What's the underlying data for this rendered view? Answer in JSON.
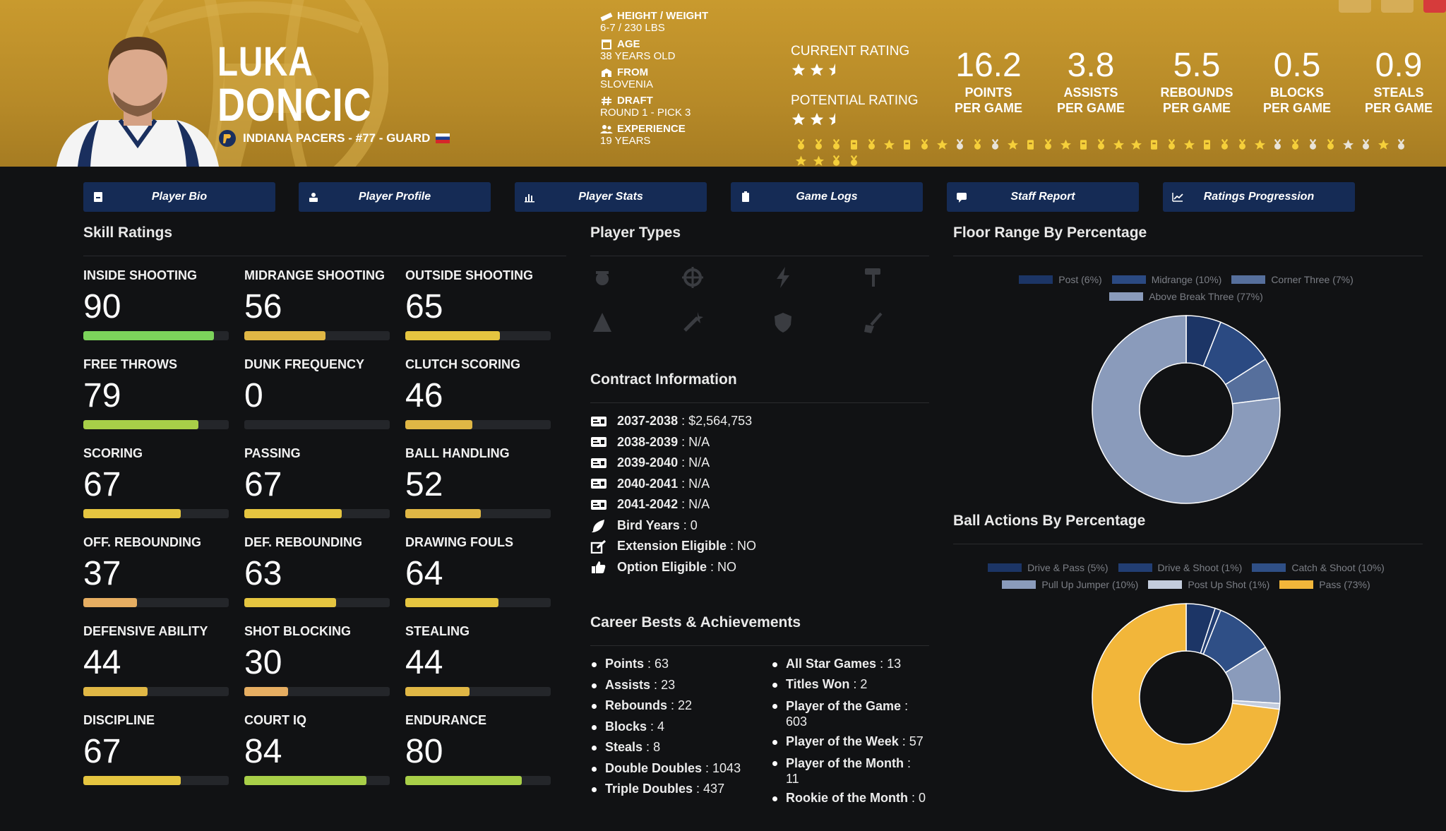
{
  "player": {
    "first_name": "LUKA",
    "last_name": "DONCIC",
    "team_line": "INDIANA PACERS - #77 - GUARD"
  },
  "bio": [
    {
      "label": "HEIGHT / WEIGHT",
      "value": "6-7 / 230 LBS",
      "icon": "ruler-icon"
    },
    {
      "label": "AGE",
      "value": "38 YEARS OLD",
      "icon": "calendar-icon"
    },
    {
      "label": "FROM",
      "value": "SLOVENIA",
      "icon": "building-icon"
    },
    {
      "label": "DRAFT",
      "value": "ROUND 1 - PICK 3",
      "icon": "hashtag-icon"
    },
    {
      "label": "EXPERIENCE",
      "value": "19 YEARS",
      "icon": "users-icon"
    }
  ],
  "ratings": {
    "current_label": "CURRENT RATING",
    "current_stars": 2.5,
    "potential_label": "POTENTIAL RATING",
    "potential_stars": 2.5
  },
  "stats": [
    {
      "value": "16.2",
      "label1": "POINTS",
      "label2": "PER GAME"
    },
    {
      "value": "3.8",
      "label1": "ASSISTS",
      "label2": "PER GAME"
    },
    {
      "value": "5.5",
      "label1": "REBOUNDS",
      "label2": "PER GAME"
    },
    {
      "value": "0.5",
      "label1": "BLOCKS",
      "label2": "PER GAME"
    },
    {
      "value": "0.9",
      "label1": "STEALS",
      "label2": "PER GAME"
    }
  ],
  "tabs": [
    {
      "label": "Player Bio",
      "icon": "id-card-icon"
    },
    {
      "label": "Player Profile",
      "icon": "user-card-icon"
    },
    {
      "label": "Player Stats",
      "icon": "bar-chart-icon"
    },
    {
      "label": "Game Logs",
      "icon": "clipboard-icon"
    },
    {
      "label": "Staff Report",
      "icon": "comment-icon"
    },
    {
      "label": "Ratings Progression",
      "icon": "line-chart-icon"
    }
  ],
  "sections": {
    "skills": "Skill Ratings",
    "player_types": "Player Types",
    "contract": "Contract Information",
    "career": "Career Bests & Achievements",
    "floor_range": "Floor Range By Percentage",
    "ball_actions": "Ball Actions By Percentage"
  },
  "skills": [
    {
      "name": "INSIDE SHOOTING",
      "value": 90
    },
    {
      "name": "MIDRANGE SHOOTING",
      "value": 56
    },
    {
      "name": "OUTSIDE SHOOTING",
      "value": 65
    },
    {
      "name": "FREE THROWS",
      "value": 79
    },
    {
      "name": "DUNK FREQUENCY",
      "value": 0
    },
    {
      "name": "CLUTCH SCORING",
      "value": 46
    },
    {
      "name": "SCORING",
      "value": 67
    },
    {
      "name": "PASSING",
      "value": 67
    },
    {
      "name": "BALL HANDLING",
      "value": 52
    },
    {
      "name": "OFF. REBOUNDING",
      "value": 37
    },
    {
      "name": "DEF. REBOUNDING",
      "value": 63
    },
    {
      "name": "DRAWING FOULS",
      "value": 64
    },
    {
      "name": "DEFENSIVE ABILITY",
      "value": 44
    },
    {
      "name": "SHOT BLOCKING",
      "value": 30
    },
    {
      "name": "STEALING",
      "value": 44
    },
    {
      "name": "DISCIPLINE",
      "value": 67
    },
    {
      "name": "COURT IQ",
      "value": 84
    },
    {
      "name": "ENDURANCE",
      "value": 80
    }
  ],
  "player_type_icons": [
    "basketball-shot-icon",
    "crosshair-icon",
    "lightning-icon",
    "paint-roller-icon",
    "pyramid-icon",
    "magic-wand-icon",
    "shield-icon",
    "broom-icon"
  ],
  "contract": [
    {
      "label": "2037-2038",
      "value": "$2,564,753",
      "icon": "money-bill-icon"
    },
    {
      "label": "2038-2039",
      "value": "N/A",
      "icon": "money-bill-icon"
    },
    {
      "label": "2039-2040",
      "value": "N/A",
      "icon": "money-bill-icon"
    },
    {
      "label": "2040-2041",
      "value": "N/A",
      "icon": "money-bill-icon"
    },
    {
      "label": "2041-2042",
      "value": "N/A",
      "icon": "money-bill-icon"
    },
    {
      "label": "Bird Years",
      "value": "0",
      "icon": "feather-icon"
    },
    {
      "label": "Extension Eligible",
      "value": "NO",
      "icon": "edit-icon"
    },
    {
      "label": "Option Eligible",
      "value": "NO",
      "icon": "thumbs-up-icon"
    }
  ],
  "career_left": [
    {
      "label": "Points",
      "value": "63"
    },
    {
      "label": "Assists",
      "value": "23"
    },
    {
      "label": "Rebounds",
      "value": "22"
    },
    {
      "label": "Blocks",
      "value": "4"
    },
    {
      "label": "Steals",
      "value": "8"
    },
    {
      "label": "Double Doubles",
      "value": "1043"
    },
    {
      "label": "Triple Doubles",
      "value": "437"
    }
  ],
  "career_right": [
    {
      "label": "All Star Games",
      "value": "13"
    },
    {
      "label": "Titles Won",
      "value": "2"
    },
    {
      "label": "Player of the Game",
      "value": "603"
    },
    {
      "label": "Player of the Week",
      "value": "57"
    },
    {
      "label": "Player of the Month",
      "value": "11"
    },
    {
      "label": "Rookie of the Month",
      "value": "0"
    }
  ],
  "chart_data": [
    {
      "type": "pie",
      "title": "Floor Range By Percentage",
      "categories": [
        "Post",
        "Midrange",
        "Corner Three",
        "Above Break Three"
      ],
      "values": [
        6,
        10,
        7,
        77
      ],
      "legend": [
        "Post (6%)",
        "Midrange (10%)",
        "Corner Three (7%)",
        "Above Break Three (77%)"
      ],
      "colors": [
        "#1c3566",
        "#2b4a82",
        "#566f9c",
        "#8a9bbb"
      ],
      "legend_position": "top"
    },
    {
      "type": "pie",
      "title": "Ball Actions By Percentage",
      "categories": [
        "Drive & Pass",
        "Drive & Shoot",
        "Catch & Shoot",
        "Pull Up Jumper",
        "Post Up Shot",
        "Pass"
      ],
      "values": [
        5,
        1,
        10,
        10,
        1,
        73
      ],
      "legend": [
        "Drive & Pass (5%)",
        "Drive & Shoot (1%)",
        "Catch & Shoot (10%)",
        "Pull Up Jumper (10%)",
        "Post Up Shot (1%)",
        "Pass (73%)"
      ],
      "colors": [
        "#1c3566",
        "#223e73",
        "#2f4f86",
        "#8a9bbb",
        "#c3ccdc",
        "#f2b63a"
      ],
      "legend_position": "top"
    }
  ],
  "colors": {
    "header_gold": "#c99a2e",
    "tab_navy": "#152b55",
    "bar_green": "#7cd35b",
    "bar_lime": "#a8cf48",
    "bar_yellow": "#e5c540",
    "bar_gold": "#e0b745",
    "bar_orange": "#e6ae62",
    "bar_track": "#24262a"
  }
}
